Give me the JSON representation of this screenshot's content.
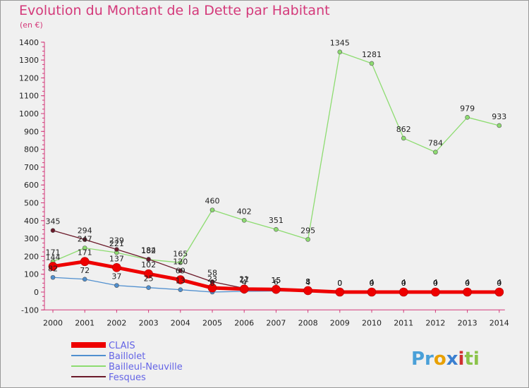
{
  "chart_data": {
    "type": "line",
    "title": "Evolution du Montant de la Dette par Habitant",
    "subtitle": "(en €)",
    "x": [
      "2000",
      "2001",
      "2002",
      "2003",
      "2004",
      "2005",
      "2006",
      "2007",
      "2008",
      "2009",
      "2010",
      "2011",
      "2012",
      "2013",
      "2014"
    ],
    "ylim": [
      -100,
      1400
    ],
    "yticks": [
      -100,
      0,
      100,
      200,
      300,
      400,
      500,
      600,
      700,
      800,
      900,
      1000,
      1100,
      1200,
      1300,
      1400
    ],
    "grid": false,
    "legend_placement": "bottom-left",
    "series": [
      {
        "name": "CLAIS",
        "color": "#ee0000",
        "values": [
          144,
          171,
          137,
          102,
          69,
          23,
          17,
          15,
          8,
          0,
          0,
          0,
          0,
          0,
          0
        ],
        "labels": [
          "144",
          "171",
          "137",
          "102",
          "69",
          "23",
          "17",
          "15",
          "8",
          "0",
          "0",
          "0",
          "0",
          "0",
          "0"
        ]
      },
      {
        "name": "Baillolet",
        "color": "#4f8fcf",
        "values": [
          82,
          72,
          37,
          25,
          13,
          0,
          4,
          6,
          4,
          0,
          4,
          4,
          4,
          4,
          4
        ],
        "labels": [
          "82",
          "72",
          "37",
          "25",
          "13",
          "0",
          "4",
          "6",
          "4",
          "0",
          "4",
          "4",
          "4",
          "4",
          "4"
        ]
      },
      {
        "name": "Bailleul-Neuville",
        "color": "#8ddc70",
        "values": [
          171,
          247,
          221,
          182,
          165,
          460,
          402,
          351,
          295,
          1345,
          1281,
          862,
          784,
          979,
          933
        ],
        "labels": [
          "171",
          "247",
          "221",
          "182",
          "165",
          "460",
          "402",
          "351",
          "295",
          "1345",
          "1281",
          "862",
          "784",
          "979",
          "933"
        ]
      },
      {
        "name": "Fesques",
        "color": "#6b1a2a",
        "values": [
          345,
          294,
          239,
          184,
          120,
          58,
          21,
          15,
          8,
          0,
          0,
          0,
          0,
          0,
          0
        ],
        "labels": [
          "345",
          "294",
          "239",
          "184",
          "120",
          "58",
          "21",
          "15",
          "8",
          "0",
          "0",
          "0",
          "0",
          "0",
          "0"
        ]
      }
    ]
  },
  "logo": {
    "text": "Proxiti"
  }
}
